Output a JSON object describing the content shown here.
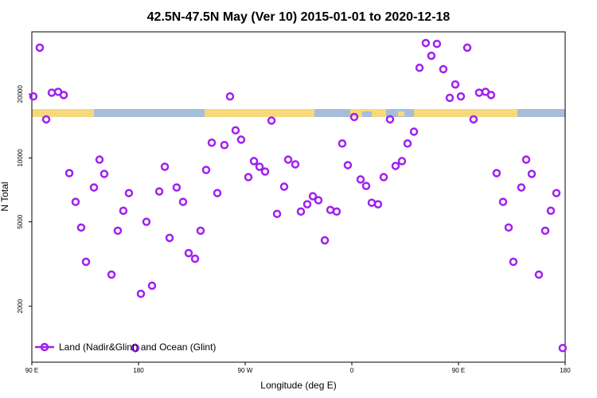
{
  "chart_data": {
    "type": "scatter",
    "title": "42.5N-47.5N May (Ver 10)   2015-01-01 to 2020-12-18",
    "x_label": "Longitude (deg E)",
    "y_label": "N Total",
    "x": [
      91.3,
      96.7,
      102.1,
      106.8,
      112.2,
      116.9,
      121.6,
      126.9,
      131.6,
      135.7,
      142.4,
      147.1,
      151.1,
      157.2,
      162.5,
      167.2,
      171.9,
      177.3,
      182.0,
      186.7,
      191.4,
      197.5,
      202.2,
      206.2,
      212.2,
      217.6,
      222.3,
      227.7,
      232.4,
      237.1,
      241.8,
      246.5,
      252.5,
      257.2,
      261.9,
      266.6,
      272.7,
      277.4,
      282.1,
      286.8,
      292.2,
      296.9,
      302.9,
      306.3,
      312.3,
      317.0,
      322.4,
      327.1,
      331.8,
      337.2,
      341.9,
      347.2,
      351.9,
      356.6,
      362.0,
      367.4,
      372.1,
      376.8,
      382.1,
      386.9,
      392.2,
      396.9,
      402.3,
      407.0,
      412.4,
      417.1,
      422.4,
      427.1,
      431.8,
      437.2,
      442.6,
      447.3,
      452.0,
      457.4,
      462.7,
      467.4,
      472.8,
      477.5,
      482.2,
      487.6,
      492.3,
      496.3,
      503.0,
      507.1,
      511.8,
      517.8,
      523.2,
      527.9,
      532.6,
      537.9
    ],
    "series": [
      {
        "name": "Land (Nadir&Glint) and Ocean (Glint)",
        "color": "#a020f0",
        "values": [
          19500,
          33100,
          15200,
          20300,
          20500,
          19800,
          8480,
          6210,
          4700,
          3240,
          7260,
          9820,
          8410,
          2820,
          4540,
          5640,
          6830,
          1270,
          2290,
          5000,
          2500,
          6950,
          9090,
          4200,
          7260,
          6210,
          3560,
          3350,
          4540,
          8780,
          11800,
          6830,
          11500,
          19500,
          13500,
          12200,
          8120,
          9660,
          9090,
          8630,
          15000,
          5450,
          7320,
          9820,
          9330,
          5590,
          6050,
          6600,
          6320,
          4090,
          5690,
          5590,
          11700,
          9250,
          15600,
          7920,
          7380,
          6150,
          6050,
          8120,
          15200,
          9170,
          9660,
          11700,
          13300,
          26600,
          34800,
          30300,
          34500,
          26200,
          19200,
          22200,
          19500,
          33100,
          15200,
          20300,
          20500,
          19800,
          8480,
          6210,
          4700,
          3240,
          7260,
          9820,
          8410,
          2820,
          4540,
          5640,
          6830,
          1270
        ]
      }
    ],
    "xlim": [
      90,
      540
    ],
    "xticks": [
      {
        "value": 90,
        "label": "90 E"
      },
      180,
      {
        "value": 270,
        "label": "90 W"
      },
      0,
      {
        "value": 450,
        "label": "90 E"
      },
      {
        "value": 540,
        "label": "180"
      }
    ],
    "ylim": [
      1090,
      39300
    ],
    "yticks": [
      2000,
      5000,
      10000,
      20000
    ],
    "log_y": true,
    "legend": "bottom-left"
  }
}
